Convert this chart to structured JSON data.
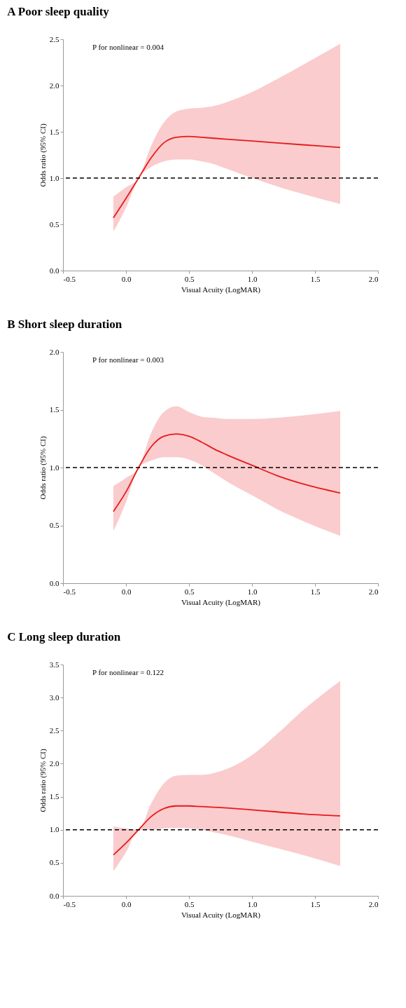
{
  "chart_data": [
    {
      "type": "line",
      "title": "A Poor sleep quality",
      "xlabel": "Visual Acuity (LogMAR)",
      "ylabel": "Odds ratio (95% CI)",
      "annotations": [
        "P for nonlinear = 0.004"
      ],
      "x": [
        -0.1,
        0,
        0.1,
        0.2,
        0.3,
        0.4,
        0.5,
        0.6,
        0.7,
        0.8,
        1.0,
        1.2,
        1.4,
        1.7
      ],
      "series": [
        {
          "color": "#e8191b",
          "values": [
            0.57,
            0.78,
            1.0,
            1.22,
            1.38,
            1.44,
            1.45,
            1.44,
            1.43,
            1.42,
            1.4,
            1.38,
            1.36,
            1.33
          ],
          "lower": [
            0.42,
            0.68,
            1.0,
            1.12,
            1.18,
            1.2,
            1.2,
            1.18,
            1.15,
            1.1,
            1.0,
            0.91,
            0.83,
            0.72
          ],
          "upper": [
            0.8,
            0.9,
            1.0,
            1.35,
            1.6,
            1.72,
            1.75,
            1.76,
            1.78,
            1.82,
            1.93,
            2.07,
            2.22,
            2.45
          ]
        }
      ],
      "ref_lines": [
        {
          "axis": "y",
          "value": 1.0,
          "color": "#000000",
          "line_style": "dashed"
        }
      ],
      "xlim": [
        -0.5,
        2.0
      ],
      "xticks": [
        -0.5,
        {
          "value": 0,
          "label": "0.0"
        },
        0.5,
        {
          "value": 1,
          "label": "1.0"
        },
        1.5,
        {
          "value": 2,
          "label": "2.0"
        }
      ],
      "ylim": [
        0,
        2.5
      ],
      "yticks": [
        {
          "value": 0,
          "label": "0.0"
        },
        0.5,
        {
          "value": 1,
          "label": "1.0"
        },
        1.5,
        {
          "value": 2,
          "label": "2.0"
        },
        2.5
      ],
      "grid": false
    },
    {
      "type": "line",
      "title": "B Short sleep duration",
      "xlabel": "Visual Acuity (LogMAR)",
      "ylabel": "Odds ratio (95% CI)",
      "annotations": [
        "P for nonlinear = 0.003"
      ],
      "x": [
        -0.1,
        0,
        0.1,
        0.2,
        0.3,
        0.4,
        0.5,
        0.6,
        0.7,
        0.8,
        1.0,
        1.2,
        1.4,
        1.7
      ],
      "series": [
        {
          "color": "#e8191b",
          "values": [
            0.62,
            0.79,
            1.0,
            1.18,
            1.27,
            1.29,
            1.27,
            1.22,
            1.16,
            1.11,
            1.02,
            0.93,
            0.86,
            0.78
          ],
          "lower": [
            0.45,
            0.7,
            1.0,
            1.06,
            1.09,
            1.09,
            1.07,
            1.02,
            0.95,
            0.88,
            0.76,
            0.64,
            0.54,
            0.41
          ],
          "upper": [
            0.84,
            0.91,
            1.0,
            1.3,
            1.48,
            1.53,
            1.48,
            1.44,
            1.43,
            1.42,
            1.42,
            1.43,
            1.45,
            1.49
          ]
        }
      ],
      "ref_lines": [
        {
          "axis": "y",
          "value": 1.0,
          "color": "#000000",
          "line_style": "dashed"
        }
      ],
      "xlim": [
        -0.5,
        2.0
      ],
      "xticks": [
        -0.5,
        {
          "value": 0,
          "label": "0.0"
        },
        0.5,
        {
          "value": 1,
          "label": "1.0"
        },
        1.5,
        {
          "value": 2,
          "label": "2.0"
        }
      ],
      "ylim": [
        0,
        2.0
      ],
      "yticks": [
        {
          "value": 0,
          "label": "0.0"
        },
        0.5,
        {
          "value": 1,
          "label": "1.0"
        },
        1.5,
        {
          "value": 2,
          "label": "2.0"
        }
      ],
      "grid": false
    },
    {
      "type": "line",
      "title": "C Long sleep duration",
      "xlabel": "Visual Acuity (LogMAR)",
      "ylabel": "Odds ratio (95% CI)",
      "annotations": [
        "P for nonlinear = 0.122"
      ],
      "x": [
        -0.1,
        0,
        0.1,
        0.2,
        0.3,
        0.4,
        0.5,
        0.6,
        0.7,
        0.8,
        1.0,
        1.2,
        1.4,
        1.7
      ],
      "series": [
        {
          "color": "#e8191b",
          "values": [
            0.62,
            0.8,
            1.0,
            1.2,
            1.32,
            1.36,
            1.36,
            1.35,
            1.34,
            1.33,
            1.3,
            1.27,
            1.24,
            1.21
          ],
          "lower": [
            0.37,
            0.66,
            1.0,
            1.0,
            1.02,
            1.03,
            1.02,
            1.0,
            0.96,
            0.92,
            0.82,
            0.72,
            0.62,
            0.45
          ],
          "upper": [
            1.05,
            1.02,
            1.0,
            1.4,
            1.7,
            1.82,
            1.83,
            1.83,
            1.86,
            1.92,
            2.13,
            2.45,
            2.8,
            3.25
          ]
        }
      ],
      "ref_lines": [
        {
          "axis": "y",
          "value": 1.0,
          "color": "#000000",
          "line_style": "dashed"
        }
      ],
      "xlim": [
        -0.5,
        2.0
      ],
      "xticks": [
        -0.5,
        {
          "value": 0,
          "label": "0.0"
        },
        0.5,
        {
          "value": 1,
          "label": "1.0"
        },
        1.5,
        {
          "value": 2,
          "label": "2.0"
        }
      ],
      "ylim": [
        0,
        3.5
      ],
      "yticks": [
        {
          "value": 0,
          "label": "0.0"
        },
        0.5,
        {
          "value": 1,
          "label": "1.0"
        },
        1.5,
        {
          "value": 2,
          "label": "2.0"
        },
        2.5,
        {
          "value": 3,
          "label": "3.0"
        },
        3.5
      ],
      "grid": false
    }
  ]
}
